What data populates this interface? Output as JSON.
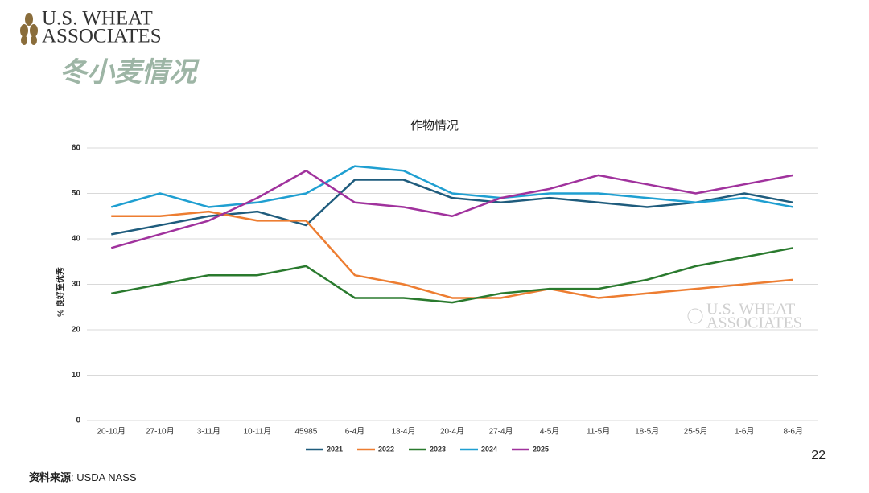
{
  "logo": {
    "line1": "U.S. WHEAT",
    "line2": "ASSOCIATES"
  },
  "slide_title": "冬小麦情况",
  "page_number": "22",
  "source": {
    "label": "资料来源",
    "text": ": USDA NASS"
  },
  "chart_data": {
    "type": "line",
    "title": "作物情况",
    "y_label": "% 良好至优秀",
    "categories": [
      "20-10月",
      "27-10月",
      "3-11月",
      "10-11月",
      "45985",
      "6-4月",
      "13-4月",
      "20-4月",
      "27-4月",
      "4-5月",
      "11-5月",
      "18-5月",
      "25-5月",
      "1-6月",
      "8-6月"
    ],
    "series": [
      {
        "name": "2021",
        "color": "#1f5c7d",
        "values": [
          41,
          43,
          45,
          46,
          43,
          53,
          53,
          49,
          48,
          49,
          48,
          47,
          48,
          50,
          48
        ]
      },
      {
        "name": "2022",
        "color": "#ed7d31",
        "values": [
          45,
          45,
          46,
          44,
          44,
          32,
          30,
          27,
          27,
          29,
          27,
          28,
          29,
          30,
          31
        ]
      },
      {
        "name": "2023",
        "color": "#2a7a2e",
        "values": [
          28,
          30,
          32,
          32,
          34,
          27,
          27,
          26,
          28,
          29,
          29,
          31,
          34,
          36,
          38
        ]
      },
      {
        "name": "2024",
        "color": "#1f9fd1",
        "values": [
          47,
          50,
          47,
          48,
          50,
          56,
          55,
          50,
          49,
          50,
          50,
          49,
          48,
          49,
          47
        ]
      },
      {
        "name": "2025",
        "color": "#a0329d",
        "values": [
          38,
          41,
          44,
          49,
          55,
          48,
          47,
          45,
          49,
          51,
          54,
          52,
          50,
          52,
          54
        ]
      }
    ],
    "ylim": [
      0,
      60
    ],
    "yticks": [
      0,
      10,
      20,
      30,
      40,
      50,
      60
    ],
    "grid": true,
    "legend": "bottom"
  }
}
